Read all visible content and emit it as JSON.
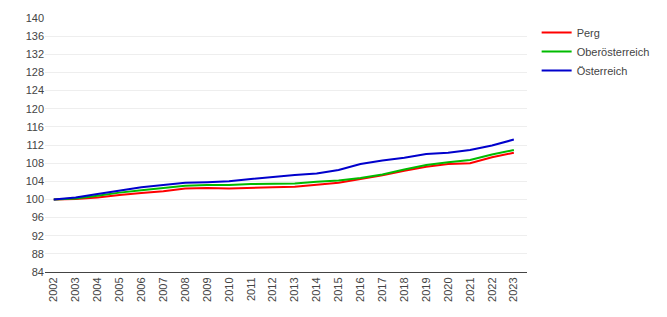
{
  "chart_data": {
    "type": "line",
    "x": [
      2002,
      2003,
      2004,
      2005,
      2006,
      2007,
      2008,
      2009,
      2010,
      2011,
      2012,
      2013,
      2014,
      2015,
      2016,
      2017,
      2018,
      2019,
      2020,
      2021,
      2022,
      2023
    ],
    "series": [
      {
        "name": "Perg",
        "color": "#ff0000",
        "values": [
          100.0,
          100.1,
          100.4,
          101.0,
          101.4,
          101.8,
          102.4,
          102.5,
          102.4,
          102.6,
          102.7,
          102.8,
          103.3,
          103.7,
          104.5,
          105.3,
          106.3,
          107.2,
          107.8,
          108.0,
          109.3,
          110.3
        ]
      },
      {
        "name": "Oberösterreich",
        "color": "#00bb00",
        "values": [
          100.0,
          100.2,
          100.8,
          101.5,
          102.0,
          102.5,
          103.0,
          103.2,
          103.2,
          103.4,
          103.5,
          103.5,
          103.9,
          104.2,
          104.7,
          105.5,
          106.6,
          107.6,
          108.2,
          108.7,
          109.9,
          110.9
        ]
      },
      {
        "name": "Österreich",
        "color": "#0000cc",
        "values": [
          100.0,
          100.4,
          101.2,
          102.0,
          102.7,
          103.2,
          103.7,
          103.8,
          104.0,
          104.5,
          105.0,
          105.4,
          105.7,
          106.5,
          107.8,
          108.6,
          109.2,
          110.0,
          110.3,
          110.9,
          111.9,
          113.2
        ]
      }
    ],
    "xlim": [
      2001.6,
      2023.6
    ],
    "xticks": [
      2002,
      2003,
      2004,
      2005,
      2006,
      2007,
      2008,
      2009,
      2010,
      2011,
      2012,
      2013,
      2014,
      2015,
      2016,
      2017,
      2018,
      2019,
      2020,
      2021,
      2022,
      2023
    ],
    "ylim": [
      84,
      140
    ],
    "yticks": [
      84,
      88,
      92,
      96,
      100,
      104,
      108,
      112,
      116,
      120,
      124,
      128,
      132,
      136,
      140
    ],
    "grid": "y",
    "legend": "right"
  }
}
